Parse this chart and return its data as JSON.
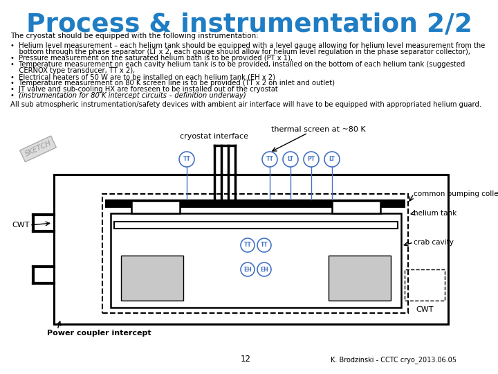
{
  "title": "Process & instrumentation 2/2",
  "title_color": "#1F7DC4",
  "subtitle": "The cryostat should be equipped with the following instrumentation:",
  "all_sub_text": "All sub atmospheric instrumentation/safety devices with ambient air interface will have to be equipped with appropriated helium guard.",
  "diagram_labels": {
    "cryostat_interface": "cryostat interface",
    "thermal_screen": "thermal screen at ~80 K",
    "common_pumping": "common pumping collector",
    "helium_tank": "helium tank",
    "crab_cavity": "crab cavity",
    "cwt_left": "CWT",
    "cwt_right": "CWT",
    "power_coupler": "Power coupler intercept",
    "sketch": "SKETCH"
  },
  "page_number": "12",
  "footer": "K. Brodzinski - CCTC cryo_2013.06.05",
  "bg_color": "#FFFFFF",
  "diagram_color": "#000000",
  "blue_color": "#4472C4"
}
